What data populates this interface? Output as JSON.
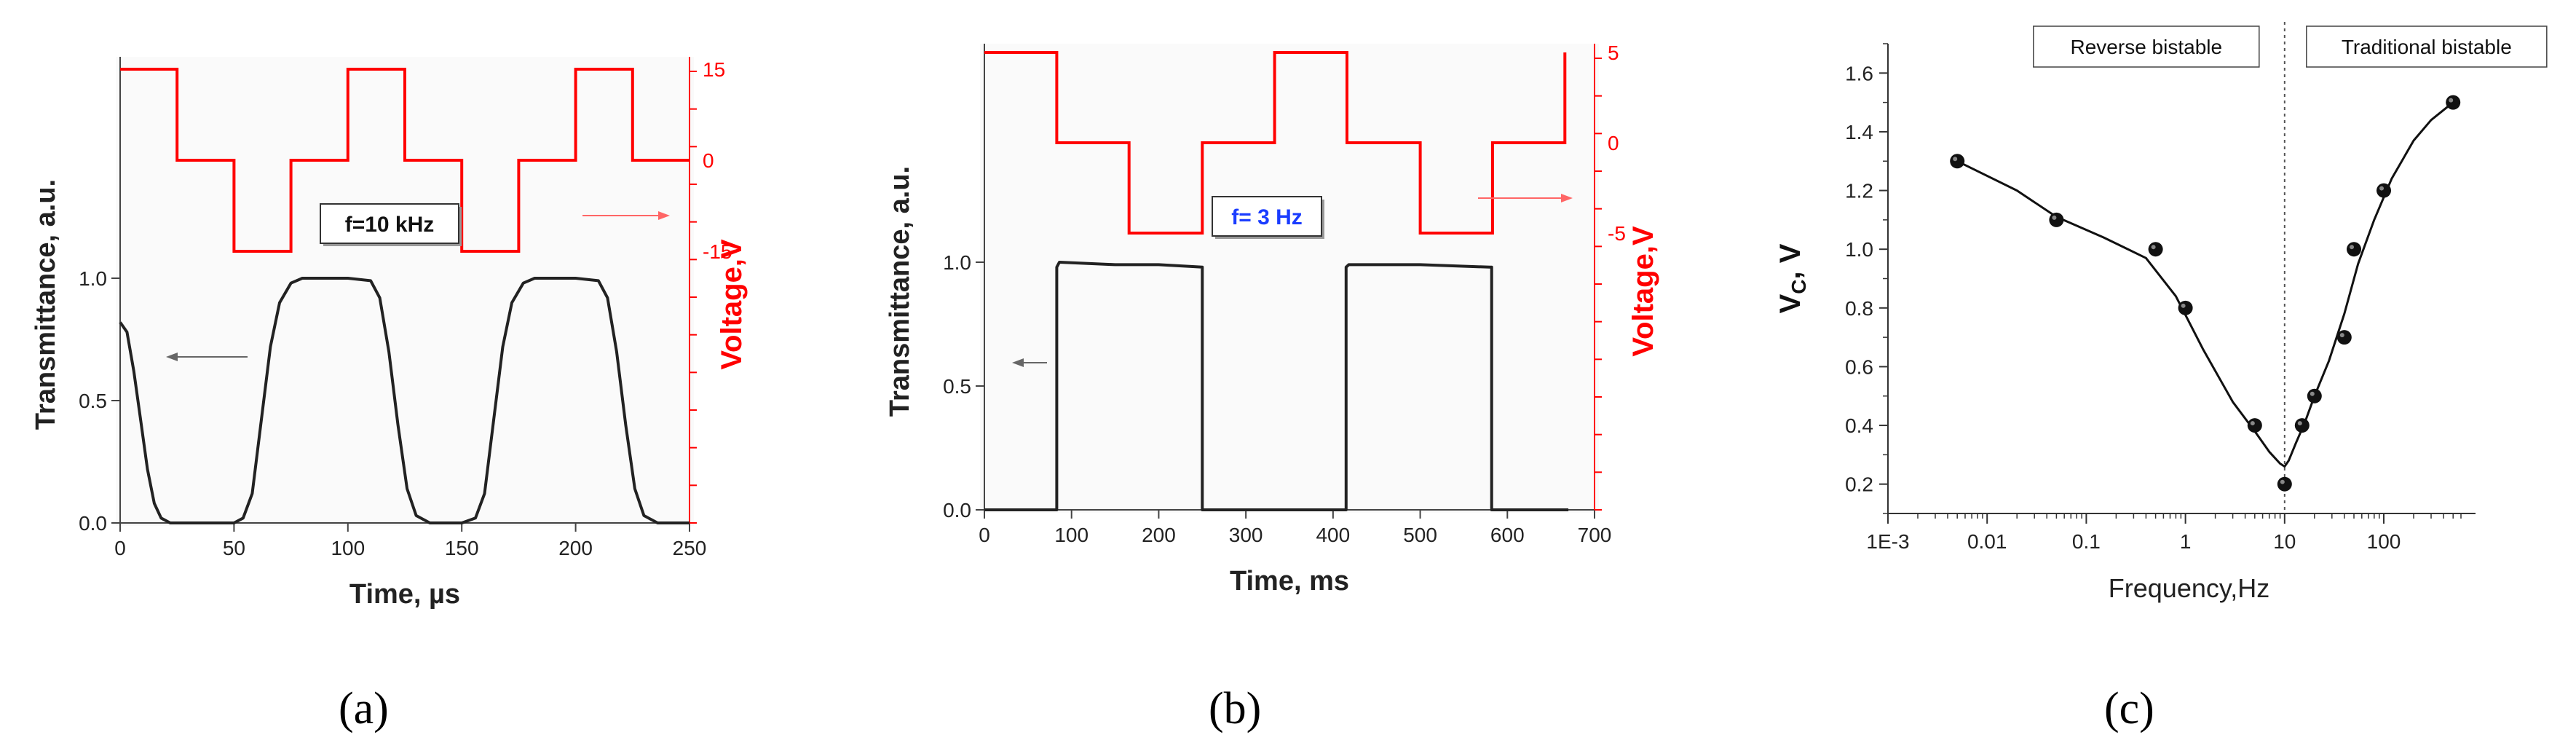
{
  "panels": {
    "a": {
      "label": "(a)"
    },
    "b": {
      "label": "(b)"
    },
    "c": {
      "label": "(c)"
    }
  },
  "colors": {
    "transmittance": "#222222",
    "voltage": "#ff0000",
    "arrow_left": "#666666",
    "arrow_right": "#ff6666"
  },
  "chart_data": [
    {
      "id": "a",
      "type": "line",
      "title": "",
      "xlabel": "Time, µs",
      "ylabel": "Transmittance, a.u.",
      "ylabel_right": "Voltage,V",
      "xlim": [
        0,
        250
      ],
      "ylim": [
        0,
        1.0
      ],
      "xticks": [
        "0",
        "50",
        "100",
        "150",
        "200",
        "250"
      ],
      "yticks": [
        "0.0",
        "0.5",
        "1.0"
      ],
      "right_ticks": [
        "15",
        "0",
        "-15"
      ],
      "annotation": "f=10 kHz",
      "series": [
        {
          "name": "",
          "axis": "left",
          "x": [
            0,
            3,
            6,
            9,
            12,
            15,
            18,
            22,
            30,
            40,
            50,
            54,
            58,
            62,
            66,
            70,
            75,
            80,
            100,
            110,
            114,
            118,
            122,
            126,
            130,
            136,
            150,
            156,
            160,
            164,
            168,
            172,
            177,
            182,
            200,
            210,
            214,
            218,
            222,
            226,
            230,
            236,
            250
          ],
          "y": [
            0.82,
            0.78,
            0.62,
            0.42,
            0.22,
            0.08,
            0.02,
            0.0,
            0.0,
            0.0,
            0.0,
            0.02,
            0.12,
            0.42,
            0.72,
            0.9,
            0.98,
            1.0,
            1.0,
            0.99,
            0.92,
            0.7,
            0.4,
            0.14,
            0.03,
            0.0,
            0.0,
            0.02,
            0.12,
            0.42,
            0.72,
            0.9,
            0.98,
            1.0,
            1.0,
            0.99,
            0.92,
            0.7,
            0.4,
            0.14,
            0.03,
            0.0,
            0.0
          ]
        },
        {
          "name": "",
          "axis": "right",
          "x": [
            0,
            25,
            25,
            50,
            50,
            75,
            75,
            100,
            100,
            125,
            125,
            150,
            150,
            175,
            175,
            200,
            200,
            225,
            225,
            250
          ],
          "y": [
            15,
            15,
            0,
            0,
            -15,
            -15,
            0,
            0,
            15,
            15,
            0,
            0,
            -15,
            -15,
            0,
            0,
            15,
            15,
            0,
            0
          ]
        }
      ]
    },
    {
      "id": "b",
      "type": "line",
      "title": "",
      "xlabel": "Time, ms",
      "ylabel": "Transmittance, a.u.",
      "ylabel_right": "Voltage,V",
      "xlim": [
        0,
        700
      ],
      "ylim": [
        0,
        1.0
      ],
      "xticks": [
        "0",
        "100",
        "200",
        "300",
        "400",
        "500",
        "600",
        "700"
      ],
      "yticks": [
        "0.0",
        "0.5",
        "1.0"
      ],
      "right_ticks": [
        "5",
        "0",
        "-5"
      ],
      "annotation": "f= 3 Hz",
      "series": [
        {
          "name": "",
          "axis": "left",
          "x": [
            0,
            83,
            83,
            86,
            150,
            200,
            250,
            250,
            415,
            415,
            418,
            500,
            580,
            582,
            582,
            670
          ],
          "y": [
            0.0,
            0.0,
            0.98,
            1.0,
            0.99,
            0.99,
            0.98,
            0.0,
            0.0,
            0.98,
            0.99,
            0.99,
            0.98,
            0.98,
            0.0,
            0.0
          ],
          "y_left": [
            0.0,
            0.0,
            0.98,
            1.0,
            0.99,
            0.99,
            0.98,
            0.0,
            0.0,
            0.98,
            0.99,
            0.99,
            0.98,
            0.98,
            0.0,
            0.0
          ]
        },
        {
          "name": "",
          "axis": "right",
          "x": [
            0,
            83,
            83,
            166,
            166,
            250,
            250,
            333,
            333,
            416,
            416,
            500,
            500,
            583,
            583,
            666,
            666
          ],
          "y": [
            5,
            5,
            0,
            0,
            -5,
            -5,
            0,
            0,
            5,
            5,
            0,
            0,
            -5,
            -5,
            0,
            0,
            5
          ]
        }
      ]
    },
    {
      "id": "c",
      "type": "scatter",
      "title": "",
      "xlabel": "Frequency,Hz",
      "ylabel": "V",
      "ylabel_sub": "C",
      "ylabel_unit": ", V",
      "xscale": "log",
      "xlim": [
        0.001,
        600
      ],
      "ylim": [
        0.1,
        1.7
      ],
      "xticks": [
        "1E-3",
        "0.01",
        "0.1",
        "1",
        "10",
        "100"
      ],
      "yticks": [
        "0.2",
        "0.4",
        "0.6",
        "0.8",
        "1.0",
        "1.2",
        "1.4",
        "1.6"
      ],
      "annotations": [
        "Reverse bistable",
        "Traditional bistable"
      ],
      "divider_x": 10,
      "series": [
        {
          "name": "",
          "x": [
            0.005,
            0.05,
            0.5,
            1,
            5,
            10,
            15,
            20,
            40,
            50,
            100,
            500
          ],
          "y": [
            1.3,
            1.1,
            1.0,
            0.8,
            0.4,
            0.2,
            0.4,
            0.5,
            0.7,
            1.0,
            1.2,
            1.5
          ]
        }
      ],
      "fit_curve": {
        "x": [
          0.005,
          0.02,
          0.05,
          0.15,
          0.4,
          0.8,
          1.5,
          3,
          5,
          7,
          9,
          10,
          11,
          13,
          16,
          20,
          28,
          40,
          55,
          80,
          120,
          200,
          300,
          500
        ],
        "y": [
          1.3,
          1.2,
          1.11,
          1.04,
          0.97,
          0.84,
          0.66,
          0.48,
          0.38,
          0.31,
          0.27,
          0.26,
          0.28,
          0.34,
          0.41,
          0.5,
          0.62,
          0.78,
          0.95,
          1.1,
          1.24,
          1.37,
          1.44,
          1.5
        ]
      }
    }
  ]
}
